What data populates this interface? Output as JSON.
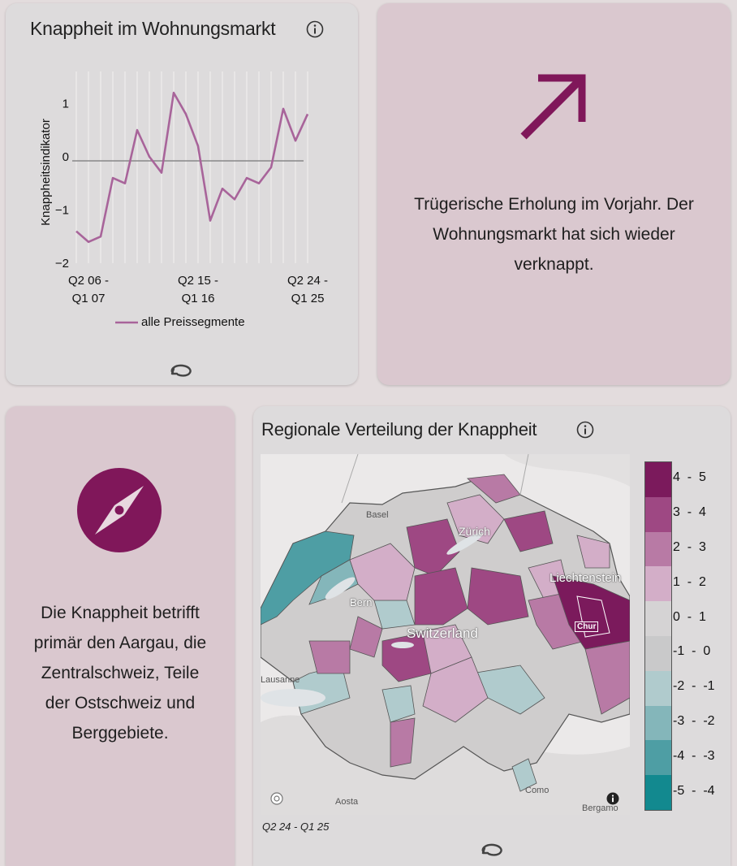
{
  "chart_card": {
    "title": "Knappheit im Wohnungsmarkt",
    "info_icon": "info-icon",
    "refresh_icon": "refresh-icon"
  },
  "chart_data": {
    "type": "line",
    "ylabel": "Knappheitsindikator",
    "xlabel": "",
    "ylim": [
      -2,
      1.6
    ],
    "yticks": [
      "1",
      "0",
      "−1",
      "−2"
    ],
    "x_tick_labels": [
      [
        "Q2 06 -",
        "Q1 07"
      ],
      [
        "Q2 15 -",
        "Q1 16"
      ],
      [
        "Q2 24 -",
        "Q1 25"
      ]
    ],
    "series": [
      {
        "name": "alle Preissegmente",
        "color": "#a8649a",
        "values": [
          -1.4,
          -1.6,
          -1.5,
          -0.4,
          -0.5,
          0.5,
          0.0,
          -0.3,
          1.2,
          0.8,
          0.2,
          -1.2,
          -0.6,
          -0.8,
          -0.4,
          -0.5,
          -0.2,
          0.9,
          0.3,
          0.8
        ]
      }
    ]
  },
  "trend_card": {
    "icon": "arrow-up-right-icon",
    "accent": "#80175a",
    "lines": [
      "Trügerische Erholung im Vorjahr. Der",
      "Wohnungsmarkt hat sich wieder",
      "verknappt."
    ]
  },
  "compass_card": {
    "icon": "compass-icon",
    "accent": "#80175a",
    "lines": [
      "Die Knappheit betrifft",
      "primär den Aargau, die",
      "Zentralschweiz, Teile",
      "der Ostschweiz und",
      "Berggebiete."
    ]
  },
  "map_card": {
    "title": "Regionale Verteilung der Knappheit",
    "period": "Q2 24 - Q1 25",
    "labels": {
      "basel": "Basel",
      "zurich": "Zürich",
      "liechtenstein": "Liechtenstein",
      "bern": "Bern",
      "switzerland": "Switzerland",
      "chur": "Chur",
      "lausanne": "Lausanne",
      "aosta": "Aosta",
      "como": "Como",
      "bergamo": "Bergamo"
    },
    "legend": [
      {
        "label": "4  -  5",
        "color": "#7b1a5c"
      },
      {
        "label": "3  -  4",
        "color": "#9e4883"
      },
      {
        "label": "2  -  3",
        "color": "#b87aa5"
      },
      {
        "label": "1  -  2",
        "color": "#d3aec8"
      },
      {
        "label": "0  -  1",
        "color": "#d5d3d4"
      },
      {
        "label": "-1  -  0",
        "color": "#c9c9ca"
      },
      {
        "label": "-2  -  -1",
        "color": "#b0cbcd"
      },
      {
        "label": "-3  -  -2",
        "color": "#84b6ba"
      },
      {
        "label": "-4  -  -3",
        "color": "#4e9ea4"
      },
      {
        "label": "-5  -  -4",
        "color": "#12898f"
      }
    ]
  }
}
